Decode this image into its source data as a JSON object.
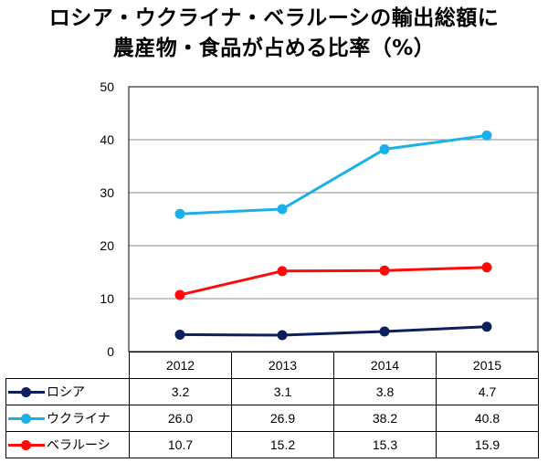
{
  "title_line1": "ロシア・ウクライナ・ベラルーシの輸出総額に",
  "title_line2": "農産物・食品が占める比率（%）",
  "chart_data": {
    "type": "line",
    "title": "ロシア・ウクライナ・ベラルーシの輸出総額に農産物・食品が占める比率（%）",
    "categories": [
      "2012",
      "2013",
      "2014",
      "2015"
    ],
    "ylim": [
      0,
      50
    ],
    "yticks": [
      0,
      10,
      20,
      30,
      40,
      50
    ],
    "grid": true,
    "legend": "data-table",
    "series": [
      {
        "name": "ロシア",
        "color": "#0d1f5c",
        "values": [
          3.2,
          3.1,
          3.8,
          4.7
        ]
      },
      {
        "name": "ウクライナ",
        "color": "#1ab0e8",
        "values": [
          26.0,
          26.9,
          38.2,
          40.8
        ]
      },
      {
        "name": "ベラルーシ",
        "color": "#ff0a0a",
        "values": [
          10.7,
          15.2,
          15.3,
          15.9
        ]
      }
    ]
  }
}
